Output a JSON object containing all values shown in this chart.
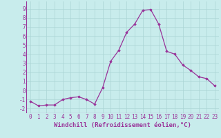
{
  "x": [
    0,
    1,
    2,
    3,
    4,
    5,
    6,
    7,
    8,
    9,
    10,
    11,
    12,
    13,
    14,
    15,
    16,
    17,
    18,
    19,
    20,
    21,
    22,
    23
  ],
  "y": [
    -1.2,
    -1.7,
    -1.6,
    -1.6,
    -1.0,
    -0.8,
    -0.7,
    -1.0,
    -1.5,
    0.3,
    3.2,
    4.4,
    6.4,
    7.3,
    8.8,
    8.9,
    7.3,
    4.3,
    4.0,
    2.8,
    2.2,
    1.5,
    1.3,
    0.5
  ],
  "line_color": "#993399",
  "marker": "D",
  "marker_size": 1.8,
  "xlabel": "Windchill (Refroidissement éolien,°C)",
  "xlabel_fontsize": 6.5,
  "ylim": [
    -2.5,
    9.8
  ],
  "xlim": [
    -0.5,
    23.5
  ],
  "background_color": "#c8ecec",
  "grid_color": "#aad4d4",
  "tick_color": "#993399",
  "tick_fontsize": 5.5,
  "linewidth": 0.9
}
